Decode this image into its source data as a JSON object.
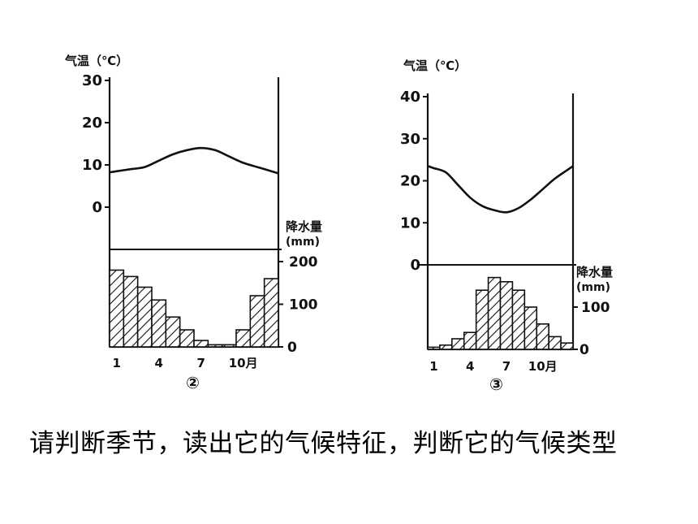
{
  "chart_data": [
    {
      "type": "climate",
      "caption": "②",
      "temp_axis_label": "气温（℃）",
      "precip_axis_label_line1": "降水量",
      "precip_axis_label_line2": "(mm)",
      "temp_ticks": [
        0,
        10,
        20,
        30
      ],
      "temp_range": [
        -10,
        30
      ],
      "precip_ticks": [
        0,
        100,
        200
      ],
      "precip_range": [
        0,
        200
      ],
      "x_tick_labels": [
        "1",
        "4",
        "7",
        "10月"
      ],
      "months": [
        1,
        2,
        3,
        4,
        5,
        6,
        7,
        8,
        9,
        10,
        11,
        12
      ],
      "temperature": [
        8.5,
        9,
        9.5,
        11,
        12.5,
        13.5,
        14,
        13.5,
        12,
        10.5,
        9.5,
        8.5
      ],
      "precipitation": [
        180,
        165,
        140,
        110,
        70,
        40,
        15,
        5,
        5,
        40,
        120,
        160
      ]
    },
    {
      "type": "climate",
      "caption": "③",
      "temp_axis_label": "气温（℃）",
      "precip_axis_label_line1": "降水量",
      "precip_axis_label_line2": "(mm)",
      "temp_ticks": [
        0,
        10,
        20,
        30,
        40
      ],
      "temp_range": [
        0,
        40
      ],
      "precip_ticks": [
        0,
        100
      ],
      "precip_range": [
        0,
        200
      ],
      "x_tick_labels": [
        "1",
        "4",
        "7",
        "10月"
      ],
      "months": [
        1,
        2,
        3,
        4,
        5,
        6,
        7,
        8,
        9,
        10,
        11,
        12
      ],
      "temperature": [
        23,
        22,
        19,
        16,
        14,
        13,
        12.5,
        13.5,
        15.5,
        18,
        20.5,
        22.5
      ],
      "precipitation": [
        5,
        10,
        25,
        40,
        140,
        170,
        160,
        140,
        100,
        60,
        30,
        15
      ]
    }
  ],
  "question": "请判断季节，读出它的气候特征，判断它的气候类型"
}
